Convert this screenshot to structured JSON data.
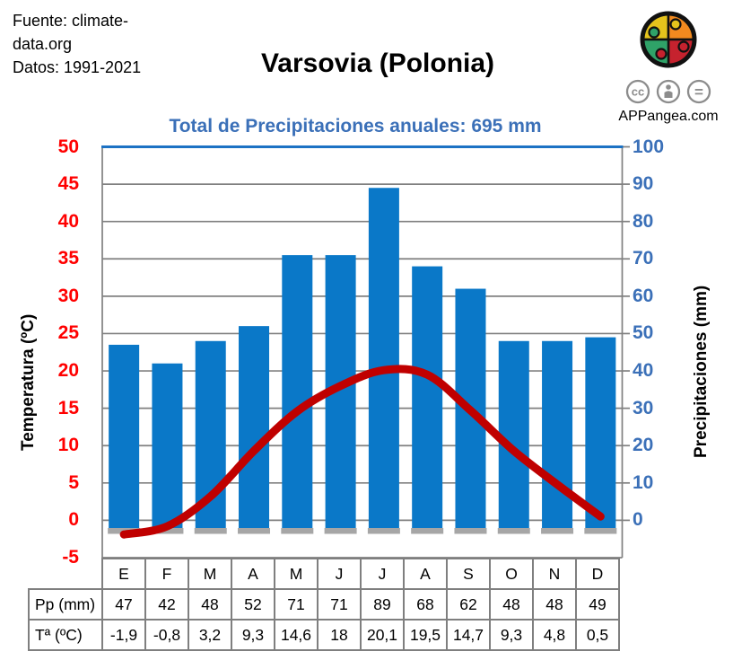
{
  "source": {
    "line1": "Fuente: climate-",
    "line2": "data.org",
    "line3": "Datos: 1991-2021"
  },
  "title": "Varsovia (Polonia)",
  "subtitle": "Total de Precipitaciones anuales: 695 mm",
  "branding": {
    "site": "APPangea.com",
    "logo": "puzzle-globe",
    "license_icons": [
      "cc",
      "attribution",
      "equal"
    ],
    "logo_colors": {
      "yellow": "#E5C31C",
      "orange": "#F28A1F",
      "green": "#2FA268",
      "red": "#C6222E"
    }
  },
  "chart_data": {
    "type": "bar",
    "categories": [
      "E",
      "F",
      "M",
      "A",
      "M",
      "J",
      "J",
      "A",
      "S",
      "O",
      "N",
      "D"
    ],
    "series": [
      {
        "name": "Pp (mm)",
        "kind": "bar",
        "axis": "right",
        "values": [
          47,
          42,
          48,
          52,
          71,
          71,
          89,
          68,
          62,
          48,
          48,
          49
        ],
        "color": "#0A78C8",
        "base_color": "#A6A6A6"
      },
      {
        "name": "Tª (ºC)",
        "kind": "line",
        "axis": "left",
        "smooth": true,
        "values": [
          -1.9,
          -0.8,
          3.2,
          9.3,
          14.6,
          18,
          20.1,
          19.5,
          14.7,
          9.3,
          4.8,
          0.5
        ],
        "color": "#C00000"
      }
    ],
    "left_axis": {
      "label": "Temperatura (ºC)",
      "min": -5,
      "max": 50,
      "step": 5,
      "ticks": [
        "50",
        "45",
        "40",
        "35",
        "30",
        "25",
        "20",
        "15",
        "10",
        "5",
        "0",
        "-5"
      ],
      "color": "#FF0000"
    },
    "right_axis": {
      "label": "Precipitaciones (mm)",
      "min": 0,
      "max": 100,
      "step": 10,
      "ticks": [
        "100",
        "90",
        "80",
        "70",
        "60",
        "50",
        "40",
        "30",
        "20",
        "10",
        "0"
      ],
      "color": "#3B70B8"
    },
    "grid": "horizontal-only",
    "grid_color": "#808080",
    "top_border_color": "#1C72C4",
    "legend": "none"
  },
  "table": {
    "months": [
      "E",
      "F",
      "M",
      "A",
      "M",
      "J",
      "J",
      "A",
      "S",
      "O",
      "N",
      "D"
    ],
    "rows": [
      {
        "label": "Pp (mm)",
        "values": [
          "47",
          "42",
          "48",
          "52",
          "71",
          "71",
          "89",
          "68",
          "62",
          "48",
          "48",
          "49"
        ]
      },
      {
        "label": "Tª (ºC)",
        "values": [
          "-1,9",
          "-0,8",
          "3,2",
          "9,3",
          "14,6",
          "18",
          "20,1",
          "19,5",
          "14,7",
          "9,3",
          "4,8",
          "0,5"
        ]
      }
    ]
  }
}
